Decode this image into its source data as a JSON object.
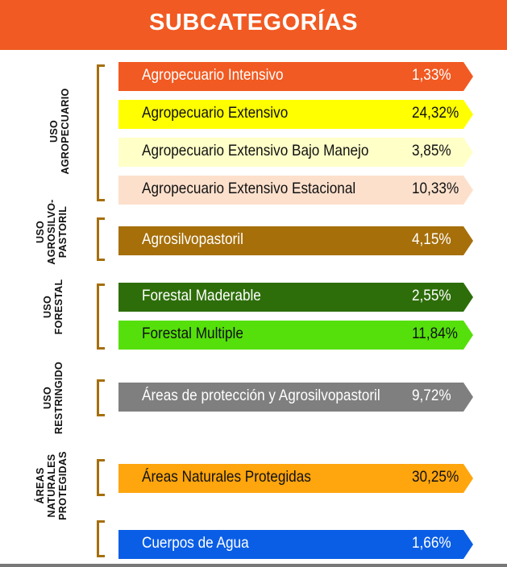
{
  "title": "SUBCATEGORÍAS",
  "groups": [
    {
      "label_lines": [
        "USO",
        "AGROPECUARIO"
      ]
    },
    {
      "label_lines": [
        "USO",
        "AGROSILVO-",
        "PASTORIL"
      ]
    },
    {
      "label_lines": [
        "USO",
        "FORESTAL"
      ]
    },
    {
      "label_lines": [
        "USO",
        "RESTRINGIDO"
      ]
    },
    {
      "label_lines": [
        "ÁREAS",
        "NATURALES",
        "PROTEGIDAS"
      ]
    },
    {
      "label_lines": []
    }
  ],
  "bars": [
    {
      "label": "Agropecuario Intensivo",
      "value": "1,33%",
      "color": "#f15a22",
      "text_color": "#ffffff"
    },
    {
      "label": "Agropecuario Extensivo",
      "value": "24,32%",
      "color": "#ffff00",
      "text_color": "#111111"
    },
    {
      "label": "Agropecuario Extensivo Bajo Manejo",
      "value": "3,85%",
      "color": "#ffffc8",
      "text_color": "#111111"
    },
    {
      "label": "Agropecuario Extensivo Estacional",
      "value": "10,33%",
      "color": "#fde0cc",
      "text_color": "#111111"
    },
    {
      "label": "Agrosilvopastoril",
      "value": "4,15%",
      "color": "#a66f0a",
      "text_color": "#ffffff"
    },
    {
      "label": "Forestal Maderable",
      "value": "2,55%",
      "color": "#2e6e0a",
      "text_color": "#ffffff"
    },
    {
      "label": "Forestal Multiple",
      "value": "11,84%",
      "color": "#55e00b",
      "text_color": "#111111"
    },
    {
      "label": "Áreas de protección y Agrosilvopastoril",
      "value": "9,72%",
      "color": "#7f7f7f",
      "text_color": "#ffffff"
    },
    {
      "label": "Áreas Naturales Protegidas",
      "value": "30,25%",
      "color": "#ffa50d",
      "text_color": "#111111"
    },
    {
      "label": "Cuerpos de Agua",
      "value": "1,66%",
      "color": "#0a5ee6",
      "text_color": "#ffffff"
    }
  ]
}
